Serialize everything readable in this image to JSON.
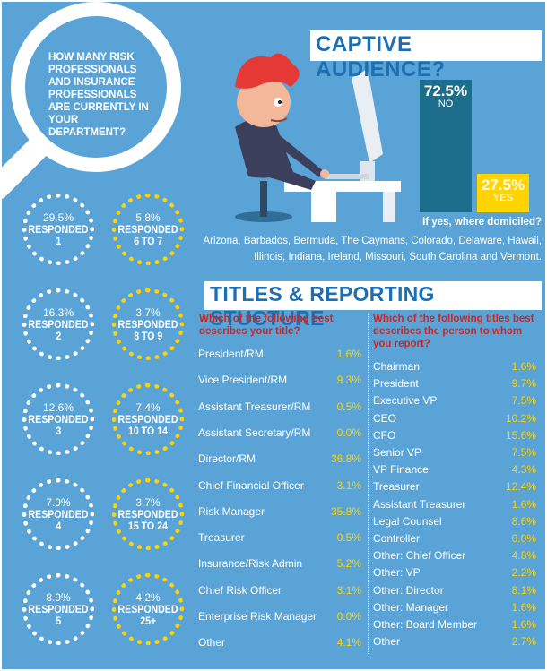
{
  "question": "HOW MANY RISK PROFESSIONALS AND INSURANCE PROFESSIONALS ARE CURRENTLY IN YOUR DEPARTMENT?",
  "department_size": [
    {
      "pct": "29.5%",
      "label": "RESPONDED 1",
      "color": "#ffffff"
    },
    {
      "pct": "5.8%",
      "label": "RESPONDED 6 TO 7",
      "color": "#ffd400"
    },
    {
      "pct": "16.3%",
      "label": "RESPONDED 2",
      "color": "#ffffff"
    },
    {
      "pct": "3.7%",
      "label": "RESPONDED 8 TO 9",
      "color": "#ffd400"
    },
    {
      "pct": "12.6%",
      "label": "RESPONDED 3",
      "color": "#ffffff"
    },
    {
      "pct": "7.4%",
      "label": "RESPONDED 10 TO 14",
      "color": "#ffd400"
    },
    {
      "pct": "7.9%",
      "label": "RESPONDED 4",
      "color": "#ffffff"
    },
    {
      "pct": "3.7%",
      "label": "RESPONDED 15 TO 24",
      "color": "#ffd400"
    },
    {
      "pct": "8.9%",
      "label": "RESPONDED 5",
      "color": "#ffffff"
    },
    {
      "pct": "4.2%",
      "label": "RESPONDED 25+",
      "color": "#ffd400"
    }
  ],
  "captive": {
    "title": "CAPTIVE AUDIENCE?",
    "no_value": "72.5%",
    "no_label": "NO",
    "yes_value": "27.5%",
    "yes_label": "YES",
    "domiciled_question": "If yes, where domiciled?",
    "domiciled_list": "Arizona, Barbados, Bermuda, The Caymans, Colorado, Delaware, Hawaii, Illinois, Indiana, Ireland, Missouri, South Carolina and Vermont."
  },
  "titles": {
    "header": "TITLES & REPORTING STUCTURE",
    "left_question": "Which of the following best describes your title?",
    "right_question": "Which of the following titles best describes the person to whom you report?"
  },
  "colors": {
    "background": "#5aa3d6",
    "accent": "#ffd400",
    "header_text": "#1d6fb3",
    "question_text": "#c62828",
    "no_bar": "#1d6e8c"
  },
  "chart_data": [
    {
      "type": "bar",
      "title": "CAPTIVE AUDIENCE?",
      "categories": [
        "NO",
        "YES"
      ],
      "values": [
        72.5,
        27.5
      ]
    },
    {
      "type": "table",
      "title": "Which of the following best describes your title?",
      "rows": [
        {
          "label": "President/RM",
          "value": "1.6%"
        },
        {
          "label": "Vice President/RM",
          "value": "9.3%"
        },
        {
          "label": "Assistant Treasurer/RM",
          "value": "0.5%"
        },
        {
          "label": "Assistant Secretary/RM",
          "value": "0.0%"
        },
        {
          "label": "Director/RM",
          "value": "36.8%"
        },
        {
          "label": "Chief Financial Officer",
          "value": "3.1%"
        },
        {
          "label": "Risk Manager",
          "value": "35.8%"
        },
        {
          "label": "Treasurer",
          "value": "0.5%"
        },
        {
          "label": "Insurance/Risk Admin",
          "value": "5.2%"
        },
        {
          "label": "Chief Risk Officer",
          "value": "3.1%"
        },
        {
          "label": "Enterprise Risk Manager",
          "value": "0.0%"
        },
        {
          "label": "Other",
          "value": "4.1%"
        }
      ]
    },
    {
      "type": "table",
      "title": "Which of the following titles best describes the person to whom you report?",
      "rows": [
        {
          "label": "Chairman",
          "value": "1.6%"
        },
        {
          "label": "President",
          "value": "9.7%"
        },
        {
          "label": "Executive VP",
          "value": "7.5%"
        },
        {
          "label": "CEO",
          "value": "10.2%"
        },
        {
          "label": "CFO",
          "value": "15.6%"
        },
        {
          "label": "Senior VP",
          "value": "7.5%"
        },
        {
          "label": "VP Finance",
          "value": "4.3%"
        },
        {
          "label": "Treasurer",
          "value": "12.4%"
        },
        {
          "label": "Assistant Treasurer",
          "value": "1.6%"
        },
        {
          "label": "Legal Counsel",
          "value": "8.6%"
        },
        {
          "label": "Controller",
          "value": "0.0%"
        },
        {
          "label": "Other: Chief Officer",
          "value": "4.8%"
        },
        {
          "label": "Other: VP",
          "value": "2.2%"
        },
        {
          "label": "Other: Director",
          "value": "8.1%"
        },
        {
          "label": "Other: Manager",
          "value": "1.6%"
        },
        {
          "label": "Other: Board Member",
          "value": "1.6%"
        },
        {
          "label": "Other",
          "value": "2.7%"
        }
      ]
    }
  ]
}
